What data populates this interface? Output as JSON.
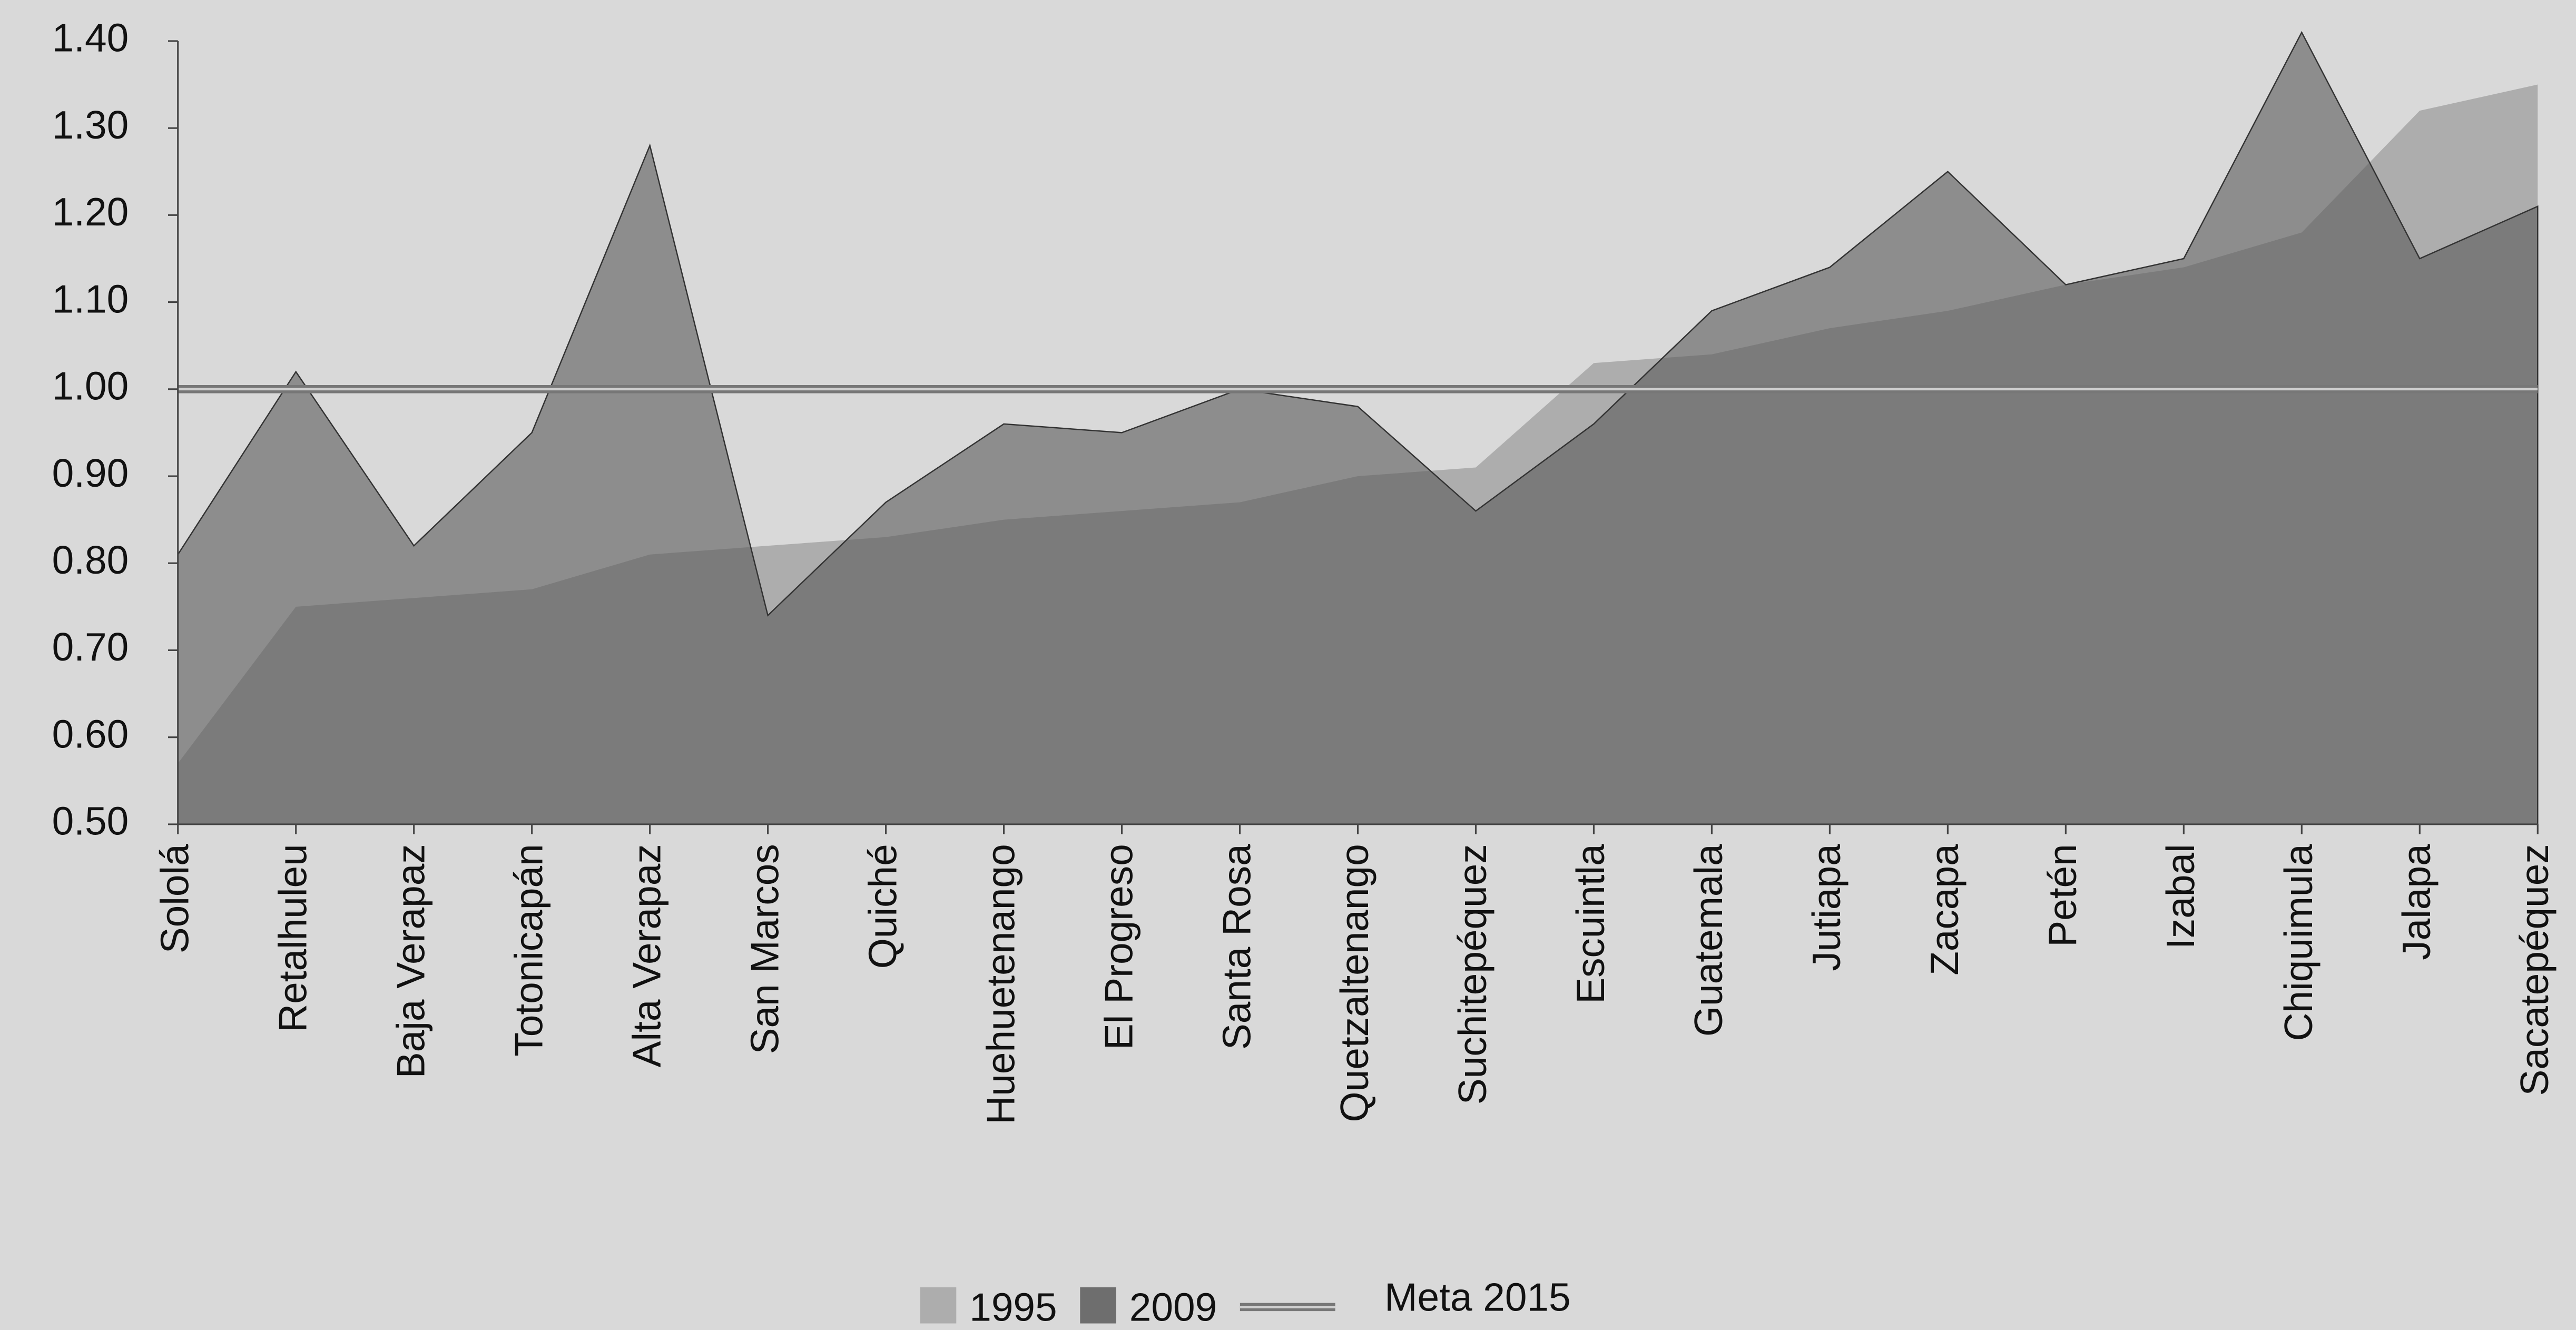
{
  "chart_data": {
    "type": "area",
    "categories": [
      "Sololá",
      "Retalhuleu",
      "Baja Verapaz",
      "Totonicapán",
      "Alta Verapaz",
      "San Marcos",
      "Quiché",
      "Huehuetenango",
      "El Progreso",
      "Santa Rosa",
      "Quetzaltenango",
      "Suchitepéquez",
      "Escuintla",
      "Guatemala",
      "Jutiapa",
      "Zacapa",
      "Petén",
      "Izabal",
      "Chiquimula",
      "Jalapa",
      "Sacatepéquez"
    ],
    "series": [
      {
        "name": "1995",
        "color": "#adadad",
        "values": [
          0.57,
          0.75,
          0.76,
          0.77,
          0.81,
          0.82,
          0.83,
          0.85,
          0.86,
          0.87,
          0.9,
          0.91,
          1.03,
          1.04,
          1.07,
          1.09,
          1.12,
          1.14,
          1.18,
          1.32,
          1.35
        ]
      },
      {
        "name": "2009",
        "color": "#5a5a5a",
        "values": [
          0.81,
          1.02,
          0.82,
          0.95,
          1.28,
          0.74,
          0.87,
          0.96,
          0.95,
          1.0,
          0.98,
          0.86,
          0.96,
          1.09,
          1.14,
          1.25,
          1.12,
          1.15,
          1.41,
          1.15,
          1.21
        ]
      },
      {
        "name": "Meta 2015",
        "color": "#777777",
        "type": "line",
        "values": [
          1.0,
          1.0,
          1.0,
          1.0,
          1.0,
          1.0,
          1.0,
          1.0,
          1.0,
          1.0,
          1.0,
          1.0,
          1.0,
          1.0,
          1.0,
          1.0,
          1.0,
          1.0,
          1.0,
          1.0,
          1.0
        ]
      }
    ],
    "ylim": [
      0.5,
      1.4
    ],
    "yticks": [
      {
        "value": 0.5,
        "label": "0.50"
      },
      {
        "value": 0.6,
        "label": "0.60"
      },
      {
        "value": 0.7,
        "label": "0.70"
      },
      {
        "value": 0.8,
        "label": "0.80"
      },
      {
        "value": 0.9,
        "label": "0.90"
      },
      {
        "value": 1.0,
        "label": "1.00"
      },
      {
        "value": 1.1,
        "label": "1.10"
      },
      {
        "value": 1.2,
        "label": "1.20"
      },
      {
        "value": 1.3,
        "label": "1.30"
      },
      {
        "value": 1.4,
        "label": "1.40"
      }
    ],
    "legend": "bottom"
  }
}
